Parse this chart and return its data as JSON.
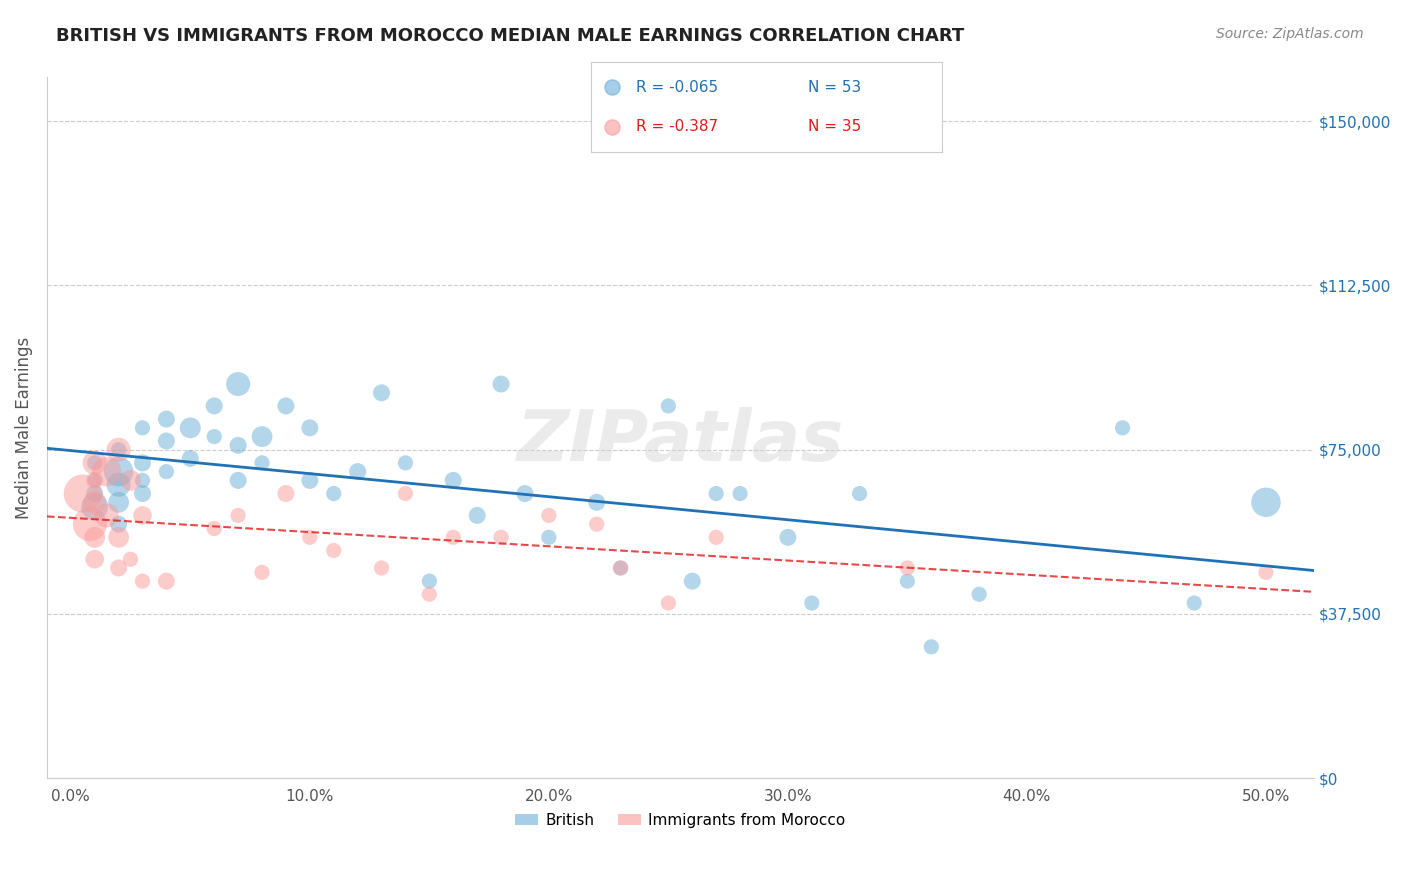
{
  "title": "BRITISH VS IMMIGRANTS FROM MOROCCO MEDIAN MALE EARNINGS CORRELATION CHART",
  "source": "Source: ZipAtlas.com",
  "ylabel": "Median Male Earnings",
  "xlabel_ticks": [
    "0.0%",
    "10.0%",
    "20.0%",
    "30.0%",
    "40.0%",
    "50.0%"
  ],
  "xlabel_vals": [
    0.0,
    0.1,
    0.2,
    0.3,
    0.4,
    0.5
  ],
  "ylabel_ticks": [
    "$0",
    "$37,500",
    "$75,000",
    "$112,500",
    "$150,000"
  ],
  "ylabel_vals": [
    0,
    37500,
    75000,
    112500,
    150000
  ],
  "ylim": [
    0,
    160000
  ],
  "xlim": [
    -0.01,
    0.52
  ],
  "watermark": "ZIPatlas",
  "british_R": "-0.065",
  "british_N": "53",
  "morocco_R": "-0.387",
  "morocco_N": "35",
  "british_color": "#6baed6",
  "morocco_color": "#fb9a99",
  "line_british_color": "#2171b5",
  "line_morocco_color": "#e31a1c",
  "british_x": [
    0.01,
    0.01,
    0.01,
    0.01,
    0.02,
    0.02,
    0.02,
    0.02,
    0.02,
    0.03,
    0.03,
    0.03,
    0.03,
    0.04,
    0.04,
    0.04,
    0.05,
    0.05,
    0.06,
    0.06,
    0.07,
    0.07,
    0.07,
    0.08,
    0.08,
    0.09,
    0.1,
    0.1,
    0.11,
    0.12,
    0.13,
    0.14,
    0.15,
    0.16,
    0.17,
    0.18,
    0.19,
    0.2,
    0.22,
    0.23,
    0.25,
    0.26,
    0.27,
    0.28,
    0.3,
    0.31,
    0.33,
    0.35,
    0.36,
    0.38,
    0.44,
    0.47,
    0.5
  ],
  "british_y": [
    65000,
    72000,
    68000,
    62000,
    75000,
    70000,
    67000,
    63000,
    58000,
    80000,
    72000,
    68000,
    65000,
    82000,
    77000,
    70000,
    80000,
    73000,
    85000,
    78000,
    90000,
    76000,
    68000,
    78000,
    72000,
    85000,
    80000,
    68000,
    65000,
    70000,
    88000,
    72000,
    45000,
    68000,
    60000,
    90000,
    65000,
    55000,
    63000,
    48000,
    85000,
    45000,
    65000,
    65000,
    55000,
    40000,
    65000,
    45000,
    30000,
    42000,
    80000,
    40000,
    63000
  ],
  "british_size": [
    100,
    80,
    70,
    250,
    80,
    300,
    200,
    150,
    100,
    80,
    100,
    80,
    100,
    100,
    100,
    80,
    150,
    100,
    100,
    80,
    200,
    100,
    100,
    150,
    80,
    100,
    100,
    100,
    80,
    100,
    100,
    80,
    80,
    100,
    100,
    100,
    100,
    80,
    100,
    80,
    80,
    100,
    80,
    80,
    100,
    80,
    80,
    80,
    80,
    80,
    80,
    80,
    300
  ],
  "morocco_x": [
    0.005,
    0.008,
    0.01,
    0.01,
    0.01,
    0.01,
    0.01,
    0.015,
    0.015,
    0.02,
    0.02,
    0.02,
    0.025,
    0.025,
    0.03,
    0.03,
    0.04,
    0.06,
    0.07,
    0.08,
    0.09,
    0.1,
    0.11,
    0.13,
    0.14,
    0.15,
    0.16,
    0.18,
    0.2,
    0.22,
    0.23,
    0.25,
    0.27,
    0.35,
    0.5
  ],
  "morocco_y": [
    65000,
    58000,
    72000,
    63000,
    55000,
    50000,
    68000,
    70000,
    60000,
    75000,
    55000,
    48000,
    68000,
    50000,
    60000,
    45000,
    45000,
    57000,
    60000,
    47000,
    65000,
    55000,
    52000,
    48000,
    65000,
    42000,
    55000,
    55000,
    60000,
    58000,
    48000,
    40000,
    55000,
    48000,
    47000
  ],
  "morocco_size": [
    500,
    400,
    200,
    180,
    150,
    120,
    100,
    300,
    200,
    200,
    150,
    100,
    150,
    80,
    120,
    80,
    100,
    80,
    80,
    80,
    100,
    80,
    80,
    80,
    80,
    80,
    80,
    80,
    80,
    80,
    80,
    80,
    80,
    80,
    80
  ]
}
